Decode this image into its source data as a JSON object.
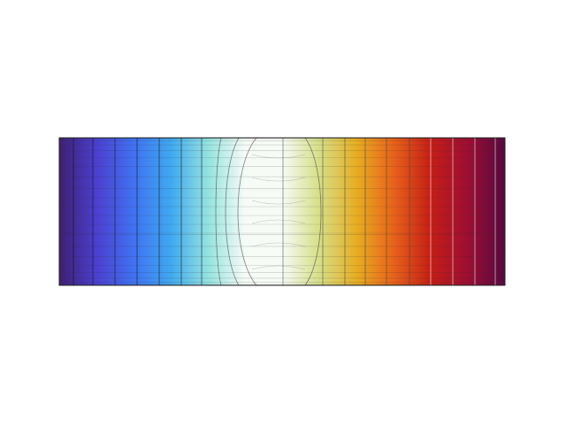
{
  "field": {
    "colormap": [
      "#3f1f73",
      "#4a40cf",
      "#3f72f2",
      "#3fa8ef",
      "#94e2df",
      "#f6fbf6",
      "#f6fbf6",
      "#d6df86",
      "#e7ad22",
      "#e8621a",
      "#c41e16",
      "#9c0e32",
      "#55093f"
    ]
  }
}
